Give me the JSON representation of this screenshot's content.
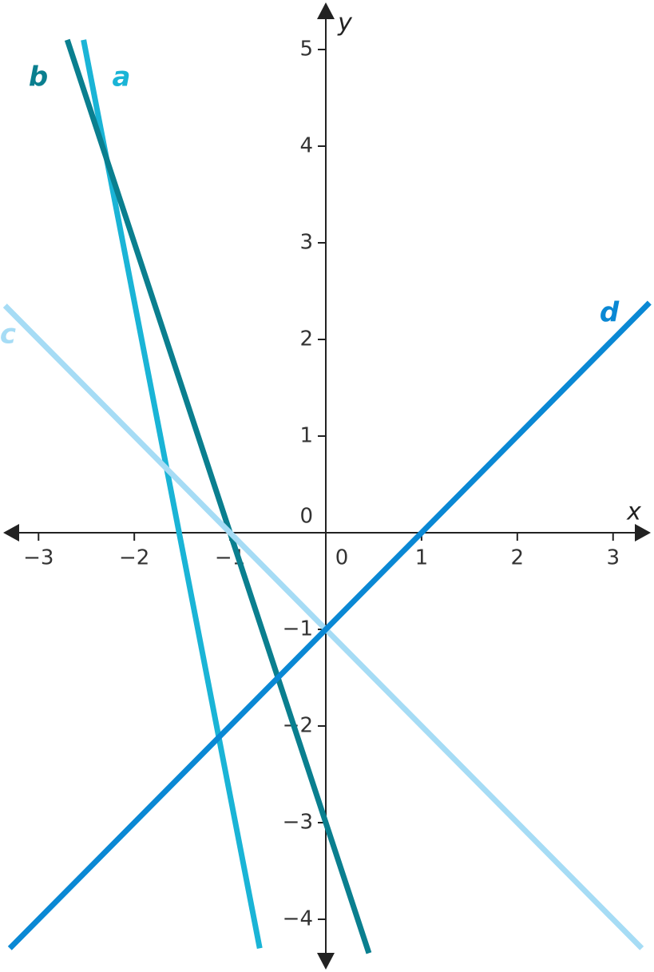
{
  "chart_data": {
    "type": "line",
    "x_label": "x",
    "y_label": "y",
    "xlim": [
      -3.4,
      3.4
    ],
    "ylim": [
      -4.5,
      5.5
    ],
    "xticks": [
      {
        "value": -3,
        "label": "−3"
      },
      {
        "value": -2,
        "label": "−2"
      },
      {
        "value": -1,
        "label": "−1"
      },
      0,
      1,
      2,
      3
    ],
    "yticks": [
      {
        "value": -4,
        "label": "−4"
      },
      {
        "value": -3,
        "label": "−3"
      },
      {
        "value": -2,
        "label": "−2"
      },
      {
        "value": -1,
        "label": "−1"
      },
      0,
      1,
      2,
      3,
      4,
      5
    ],
    "series": [
      {
        "name": "a",
        "color": "#1ab4d6",
        "x": [
          -2.53,
          -0.69
        ],
        "values": [
          5.1,
          -4.3
        ]
      },
      {
        "name": "b",
        "color": "#0a7f8f",
        "x": [
          -2.7,
          0.45
        ],
        "values": [
          5.1,
          -4.35
        ]
      },
      {
        "name": "c",
        "color": "#a6dcf5",
        "x": [
          -3.35,
          3.3
        ],
        "values": [
          2.35,
          -4.3
        ]
      },
      {
        "name": "d",
        "color": "#0a88d4",
        "x": [
          -3.3,
          3.38
        ],
        "values": [
          -4.3,
          2.38
        ]
      }
    ]
  }
}
